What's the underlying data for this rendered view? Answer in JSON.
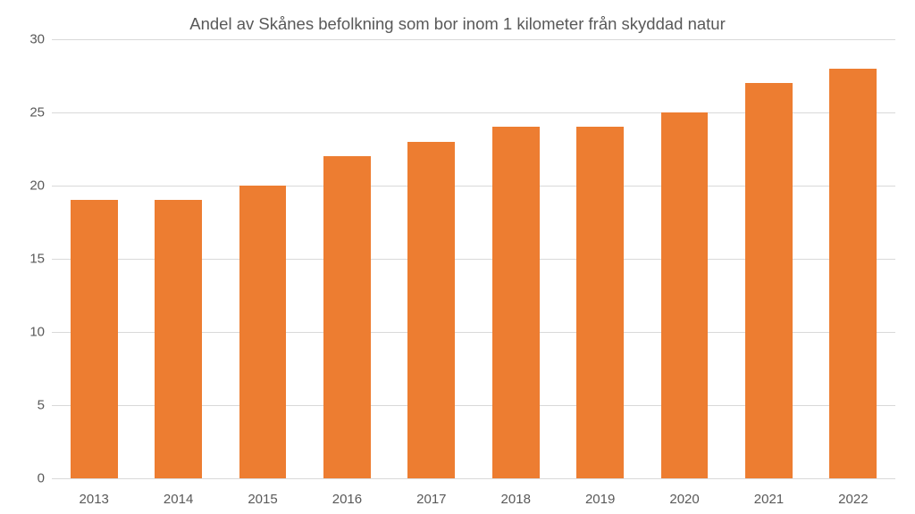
{
  "chart": {
    "type": "bar",
    "title": "Andel av Skånes befolkning som bor inom 1 kilometer från skyddad natur",
    "title_fontsize": 18.5,
    "title_color": "#595959",
    "categories": [
      "2013",
      "2014",
      "2015",
      "2016",
      "2017",
      "2018",
      "2019",
      "2020",
      "2021",
      "2022"
    ],
    "values": [
      19,
      19,
      20,
      22,
      23,
      24,
      24,
      25,
      27,
      28
    ],
    "bar_color": "#ed7d31",
    "bar_width": 0.56,
    "ylim": [
      0,
      30
    ],
    "yticks": [
      0,
      5,
      10,
      15,
      20,
      25,
      30
    ],
    "axis_label_color": "#595959",
    "axis_label_fontsize": 15,
    "grid_color": "#d9d9d9",
    "background_color": "#ffffff"
  }
}
